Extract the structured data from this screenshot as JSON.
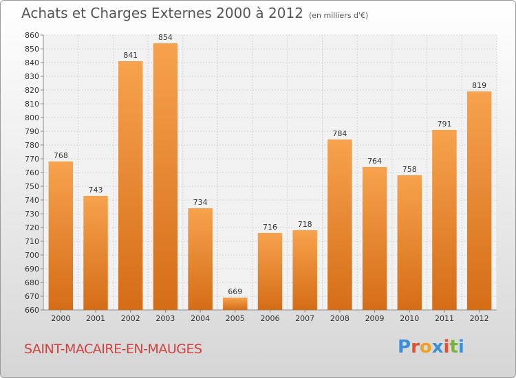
{
  "header": {
    "title": "Achats et Charges Externes 2000 à 2012",
    "subtitle": "(en milliers d'€)"
  },
  "footer": {
    "commune": "SAINT-MACAIRE-EN-MAUGES",
    "logo_text": "Proxiti"
  },
  "colors": {
    "bar_top": "#f7a24e",
    "bar_bottom": "#d56d17",
    "title": "#555555",
    "commune": "#d0433f",
    "logo": [
      "#3a8fd6",
      "#e2502d",
      "#f0a323",
      "#3a8fd6",
      "#e2502d",
      "#7cb342",
      "#3a8fd6"
    ]
  },
  "chart_data": {
    "type": "bar",
    "title": "Achats et Charges Externes 2000 à 2012",
    "subtitle": "(en milliers d'€)",
    "categories": [
      "2000",
      "2001",
      "2002",
      "2003",
      "2004",
      "2005",
      "2006",
      "2007",
      "2008",
      "2009",
      "2010",
      "2011",
      "2012"
    ],
    "values": [
      768,
      743,
      841,
      854,
      734,
      669,
      716,
      718,
      784,
      764,
      758,
      791,
      819
    ],
    "ylim": [
      660,
      860
    ],
    "yticks": [
      660,
      670,
      680,
      690,
      700,
      710,
      720,
      730,
      740,
      750,
      760,
      770,
      780,
      790,
      800,
      810,
      820,
      830,
      840,
      850,
      860
    ],
    "grid": true,
    "xlabel": "",
    "ylabel": ""
  }
}
